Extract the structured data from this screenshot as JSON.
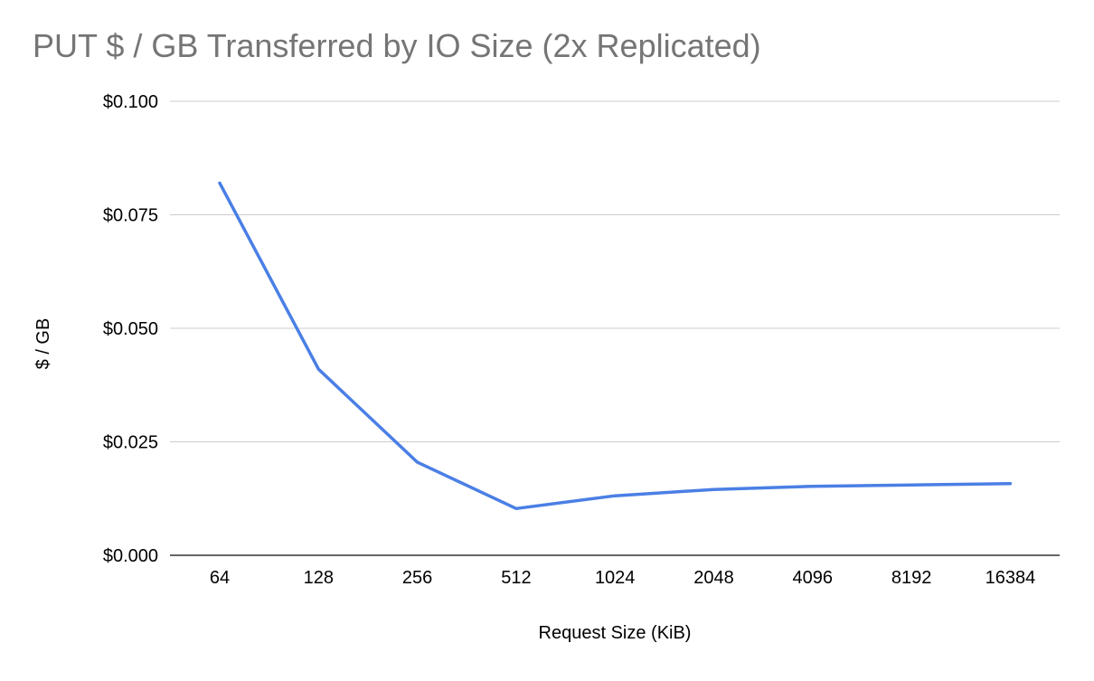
{
  "chart_data": {
    "type": "line",
    "title": "PUT $ / GB Transferred by IO Size (2x Replicated)",
    "xlabel": "Request Size (KiB)",
    "ylabel": "$ / GB",
    "categories": [
      "64",
      "128",
      "256",
      "512",
      "1024",
      "2048",
      "4096",
      "8192",
      "16384"
    ],
    "series": [
      {
        "values": [
          0.082,
          0.041,
          0.0205,
          0.0103,
          0.0131,
          0.0145,
          0.0152,
          0.0155,
          0.0158
        ],
        "color": "#4A7FE5"
      }
    ],
    "ylim": [
      0,
      0.1
    ],
    "yticks": [
      0.0,
      0.025,
      0.05,
      0.075,
      0.1
    ],
    "ytick_labels": [
      "$0.000",
      "$0.025",
      "$0.050",
      "$0.075",
      "$0.100"
    ],
    "grid": true,
    "legend": "none",
    "colors": {
      "title": "#757575",
      "grid": "#cccccc",
      "axis": "#333333",
      "text": "#000000"
    }
  }
}
